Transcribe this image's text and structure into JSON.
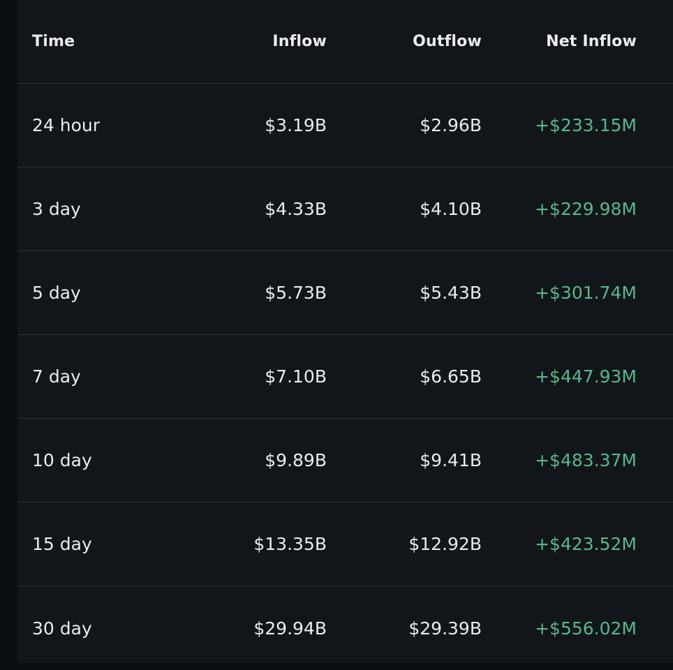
{
  "table": {
    "columns": [
      "Time",
      "Inflow",
      "Outflow",
      "Net Inflow"
    ],
    "rows": [
      {
        "time": "24 hour",
        "inflow": "$3.19B",
        "outflow": "$2.96B",
        "net": "+$233.15M"
      },
      {
        "time": "3 day",
        "inflow": "$4.33B",
        "outflow": "$4.10B",
        "net": "+$229.98M"
      },
      {
        "time": "5 day",
        "inflow": "$5.73B",
        "outflow": "$5.43B",
        "net": "+$301.74M"
      },
      {
        "time": "7 day",
        "inflow": "$7.10B",
        "outflow": "$6.65B",
        "net": "+$447.93M"
      },
      {
        "time": "10 day",
        "inflow": "$9.89B",
        "outflow": "$9.41B",
        "net": "+$483.37M"
      },
      {
        "time": "15 day",
        "inflow": "$13.35B",
        "outflow": "$12.92B",
        "net": "+$423.52M"
      },
      {
        "time": "30 day",
        "inflow": "$29.94B",
        "outflow": "$29.39B",
        "net": "+$556.02M"
      }
    ]
  },
  "colors": {
    "background": "#0b0e11",
    "panel": "#12151a",
    "text": "#eaecef",
    "positive": "#58b88a",
    "divider": "#2b3039"
  }
}
